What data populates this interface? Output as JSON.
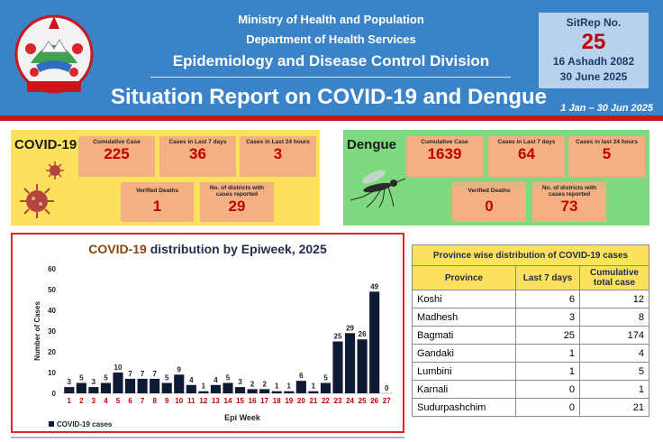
{
  "header": {
    "ministry": "Ministry of Health and Population",
    "department": "Department of Health Services",
    "division": "Epidemiology and Disease Control Division",
    "title": "Situation Report on COVID-19 and Dengue",
    "period": "1 Jan – 30 Jun 2025"
  },
  "sitrep": {
    "label": "SitRep No.",
    "number": "25",
    "date_nepali": "16 Ashadh 2082",
    "date": "30 June 2025"
  },
  "covid": {
    "name": "COVID-19",
    "stats": [
      {
        "label": "Cumulative Case",
        "value": "225"
      },
      {
        "label": "Cases in Last 7 days",
        "value": "36"
      },
      {
        "label": "Cases in Last 24 hours",
        "value": "3"
      },
      {
        "label": "Verified Deaths",
        "value": "1"
      },
      {
        "label": "No. of districts with cases reported",
        "value": "29"
      }
    ]
  },
  "dengue": {
    "name": "Dengue",
    "stats": [
      {
        "label": "Cumulative Case",
        "value": "1639"
      },
      {
        "label": "Cases in Last 7 days",
        "value": "64"
      },
      {
        "label": "Cases in last 24 hours",
        "value": "5"
      },
      {
        "label": "Verified Deaths",
        "value": "0"
      },
      {
        "label": "No. of districts with cases reported",
        "value": "73"
      }
    ]
  },
  "chart_data": {
    "type": "bar",
    "title_prefix": "COVID-19",
    "title_suffix": " distribution by Epiweek, 2025",
    "xlabel": "Epi Week",
    "ylabel": "Number of Cases",
    "ylim": [
      0,
      60
    ],
    "yticks": [
      0,
      10,
      20,
      30,
      40,
      50,
      60
    ],
    "grid": false,
    "legend_position": "bottom-left",
    "categories": [
      "1",
      "2",
      "3",
      "4",
      "5",
      "6",
      "7",
      "8",
      "9",
      "10",
      "11",
      "12",
      "13",
      "14",
      "15",
      "16",
      "17",
      "18",
      "19",
      "20",
      "21",
      "22",
      "23",
      "24",
      "25",
      "26",
      "27"
    ],
    "series": [
      {
        "name": "COVID-19 cases",
        "color": "#0e1a33",
        "values": [
          3,
          5,
          3,
          5,
          10,
          7,
          7,
          7,
          5,
          9,
          4,
          1,
          4,
          5,
          3,
          2,
          2,
          1,
          1,
          6,
          1,
          5,
          25,
          29,
          26,
          49,
          0
        ]
      }
    ]
  },
  "province_table": {
    "caption": "Province wise distribution of COVID-19 cases",
    "headers": [
      "Province",
      "Last 7 days",
      "Cumulative total case"
    ],
    "rows": [
      [
        "Koshi",
        "6",
        "12"
      ],
      [
        "Madhesh",
        "3",
        "8"
      ],
      [
        "Bagmati",
        "25",
        "174"
      ],
      [
        "Gandaki",
        "1",
        "4"
      ],
      [
        "Lumbini",
        "1",
        "5"
      ],
      [
        "Karnali",
        "0",
        "1"
      ],
      [
        "Sudurpashchim",
        "0",
        "21"
      ]
    ]
  },
  "colors": {
    "header_blue": "#3a83c8",
    "accent_red": "#c9151c",
    "covid_panel": "#fbe15e",
    "dengue_panel": "#7fd97f",
    "stat_box": "#f4b083",
    "stat_value": "#c00000",
    "bar": "#0e1a33"
  },
  "icons": {
    "emblem": "nepal-emblem-icon",
    "virus": "virus-icon",
    "mosquito": "mosquito-icon"
  }
}
